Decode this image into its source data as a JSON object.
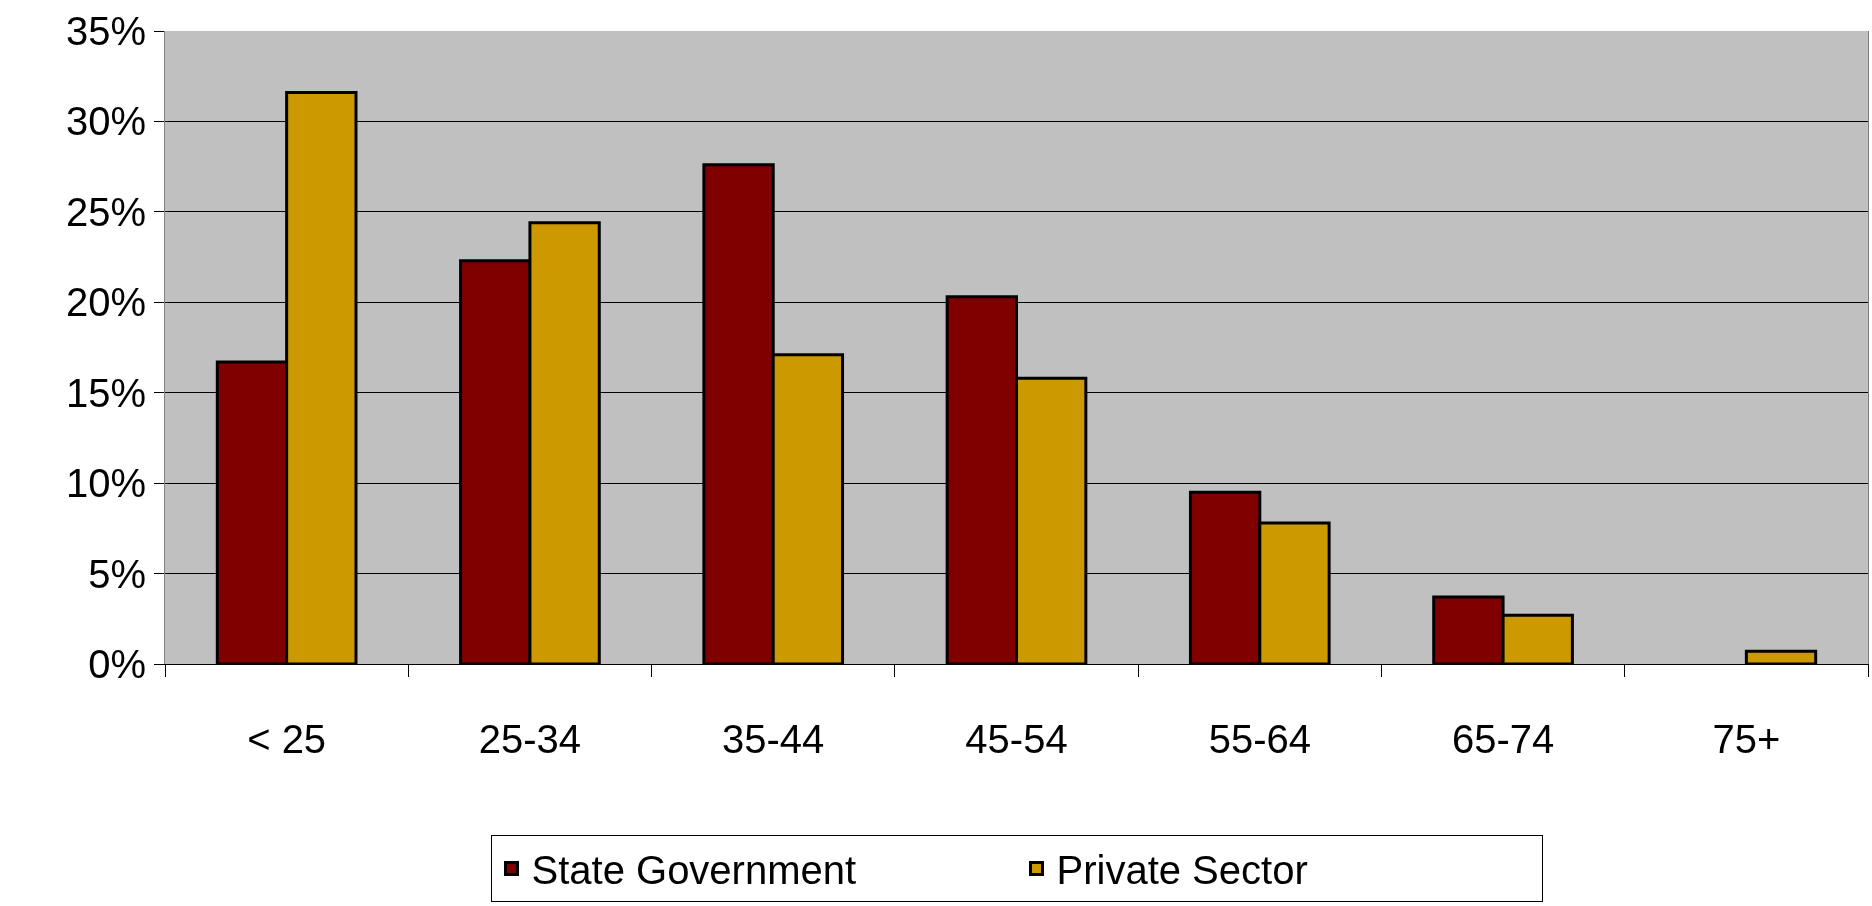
{
  "chart_data": {
    "type": "bar",
    "categories": [
      "< 25",
      "25-34",
      "35-44",
      "45-54",
      "55-64",
      "65-74",
      "75+"
    ],
    "series": [
      {
        "name": "State Government",
        "color": "#800000",
        "values": [
          16.7,
          22.3,
          27.6,
          20.3,
          9.5,
          3.7,
          null
        ]
      },
      {
        "name": "Private Sector",
        "color": "#cc9900",
        "values": [
          31.6,
          24.4,
          17.1,
          15.8,
          7.8,
          2.7,
          0.7
        ]
      }
    ],
    "ylim": [
      0,
      35
    ],
    "yticks": [
      {
        "value": 0,
        "label": "0%"
      },
      {
        "value": 5,
        "label": "5%"
      },
      {
        "value": 10,
        "label": "10%"
      },
      {
        "value": 15,
        "label": "15%"
      },
      {
        "value": 20,
        "label": "20%"
      },
      {
        "value": 25,
        "label": "25%"
      },
      {
        "value": 30,
        "label": "30%"
      },
      {
        "value": 35,
        "label": "35%"
      }
    ],
    "grid": "y",
    "legend": "bottom"
  }
}
